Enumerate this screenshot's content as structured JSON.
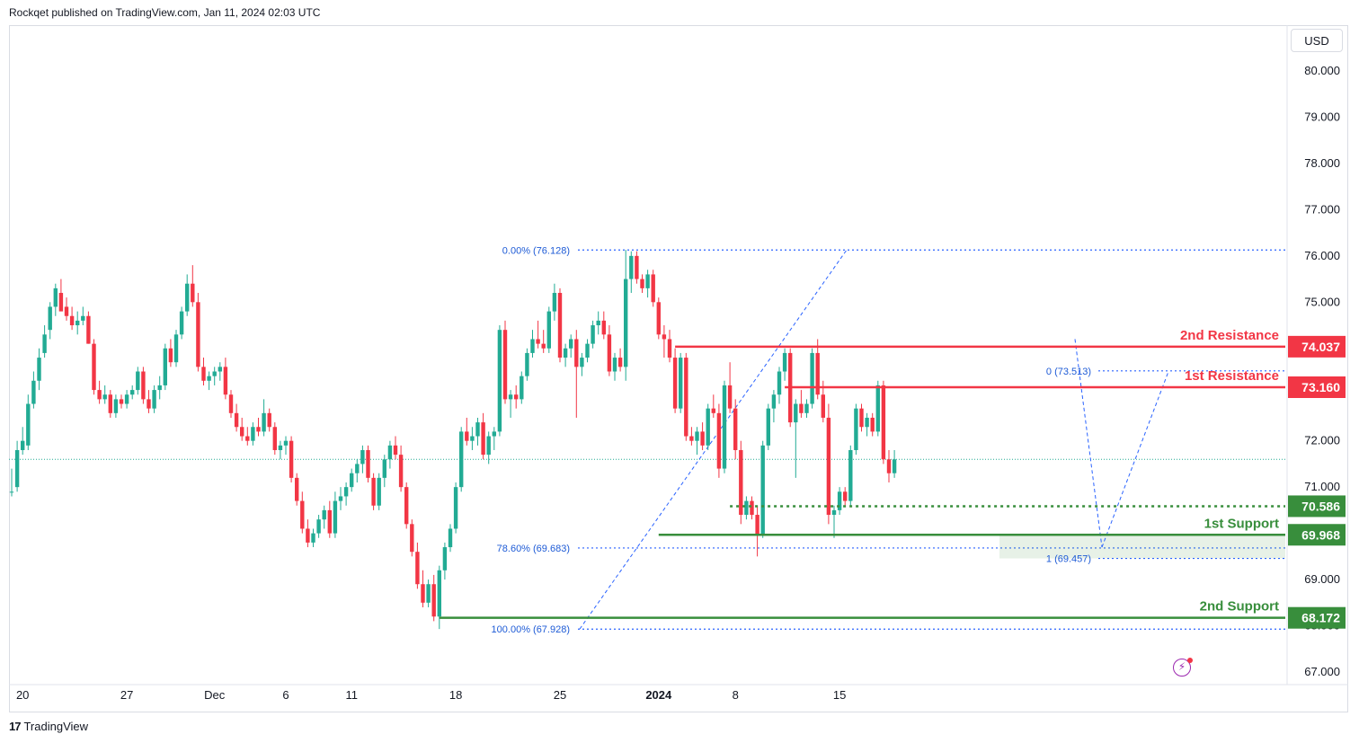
{
  "header": {
    "text": "Rockqet published on TradingView.com, Jan 11, 2024 02:03 UTC"
  },
  "currency": "USD",
  "footer": {
    "brand": "TradingView",
    "logo_glyph": "17"
  },
  "colors": {
    "up": "#22ab94",
    "down": "#f23645",
    "resistance": "#f23645",
    "support": "#388e3c",
    "fib": "#2962ff",
    "axis_text": "#131722"
  },
  "chart_data": {
    "type": "candlestick",
    "y_ticks": [
      "80.000",
      "79.000",
      "78.000",
      "77.000",
      "76.000",
      "75.000",
      "74.000",
      "73.000",
      "72.000",
      "71.000",
      "70.000",
      "69.000",
      "68.000",
      "67.000"
    ],
    "ylim": [
      66.6,
      80.4
    ],
    "x_ticks": [
      {
        "label": "20",
        "bar": 2,
        "bold": false
      },
      {
        "label": "27",
        "bar": 21,
        "bold": false
      },
      {
        "label": "Dec",
        "bar": 37,
        "bold": false
      },
      {
        "label": "6",
        "bar": 50,
        "bold": false
      },
      {
        "label": "11",
        "bar": 62,
        "bold": false
      },
      {
        "label": "18",
        "bar": 81,
        "bold": false
      },
      {
        "label": "25",
        "bar": 100,
        "bold": false
      },
      {
        "label": "2024",
        "bar": 118,
        "bold": true
      },
      {
        "label": "8",
        "bar": 132,
        "bold": false
      },
      {
        "label": "15",
        "bar": 151,
        "bold": false
      }
    ],
    "candles": [
      [
        70.9,
        71.4,
        70.8,
        70.9
      ],
      [
        71.0,
        72.0,
        70.9,
        71.8
      ],
      [
        71.8,
        72.3,
        71.7,
        72.0
      ],
      [
        71.9,
        73.0,
        71.8,
        72.8
      ],
      [
        72.8,
        73.5,
        72.7,
        73.3
      ],
      [
        73.3,
        74.0,
        73.1,
        73.8
      ],
      [
        73.9,
        74.5,
        73.8,
        74.3
      ],
      [
        74.4,
        75.0,
        74.2,
        74.9
      ],
      [
        74.9,
        75.4,
        74.7,
        75.3
      ],
      [
        75.2,
        75.5,
        74.9,
        74.8
      ],
      [
        74.9,
        75.1,
        74.6,
        74.7
      ],
      [
        74.7,
        74.9,
        74.4,
        74.5
      ],
      [
        74.5,
        74.8,
        74.3,
        74.6
      ],
      [
        74.6,
        74.9,
        74.5,
        74.7
      ],
      [
        74.7,
        74.8,
        74.1,
        74.1
      ],
      [
        74.1,
        74.2,
        73.0,
        73.1
      ],
      [
        73.1,
        73.3,
        72.8,
        72.9
      ],
      [
        72.9,
        73.2,
        72.8,
        73.0
      ],
      [
        73.0,
        73.1,
        72.5,
        72.6
      ],
      [
        72.6,
        73.0,
        72.5,
        72.9
      ],
      [
        72.9,
        73.0,
        72.7,
        72.8
      ],
      [
        72.8,
        73.1,
        72.7,
        73.0
      ],
      [
        73.0,
        73.2,
        72.9,
        73.1
      ],
      [
        73.1,
        73.6,
        73.0,
        73.5
      ],
      [
        73.5,
        73.6,
        72.8,
        72.9
      ],
      [
        72.9,
        73.1,
        72.6,
        72.7
      ],
      [
        72.7,
        73.2,
        72.6,
        73.1
      ],
      [
        73.1,
        73.4,
        72.9,
        73.2
      ],
      [
        73.2,
        74.1,
        73.1,
        74.0
      ],
      [
        74.0,
        74.2,
        73.6,
        73.7
      ],
      [
        73.7,
        74.4,
        73.6,
        74.3
      ],
      [
        74.3,
        74.9,
        74.2,
        74.8
      ],
      [
        74.8,
        75.6,
        74.7,
        75.4
      ],
      [
        75.4,
        75.8,
        74.9,
        75.0
      ],
      [
        75.0,
        75.2,
        73.5,
        73.6
      ],
      [
        73.6,
        73.8,
        73.2,
        73.3
      ],
      [
        73.3,
        73.5,
        73.1,
        73.4
      ],
      [
        73.4,
        73.6,
        73.2,
        73.5
      ],
      [
        73.5,
        73.7,
        73.3,
        73.6
      ],
      [
        73.6,
        73.8,
        72.9,
        73.0
      ],
      [
        73.0,
        73.1,
        72.5,
        72.6
      ],
      [
        72.6,
        72.8,
        72.2,
        72.3
      ],
      [
        72.3,
        72.5,
        72.0,
        72.1
      ],
      [
        72.1,
        72.3,
        71.9,
        72.0
      ],
      [
        72.0,
        72.4,
        71.9,
        72.3
      ],
      [
        72.3,
        72.5,
        72.1,
        72.2
      ],
      [
        72.2,
        72.9,
        72.1,
        72.6
      ],
      [
        72.6,
        72.7,
        72.2,
        72.3
      ],
      [
        72.3,
        72.4,
        71.7,
        71.8
      ],
      [
        71.8,
        72.0,
        71.6,
        71.9
      ],
      [
        71.9,
        72.1,
        71.7,
        72.0
      ],
      [
        72.0,
        72.1,
        71.1,
        71.2
      ],
      [
        71.2,
        71.3,
        70.6,
        70.7
      ],
      [
        70.7,
        70.9,
        70.0,
        70.1
      ],
      [
        70.1,
        70.3,
        69.7,
        69.8
      ],
      [
        69.8,
        70.1,
        69.7,
        70.0
      ],
      [
        70.0,
        70.4,
        69.9,
        70.3
      ],
      [
        70.3,
        70.6,
        70.1,
        70.5
      ],
      [
        70.5,
        70.7,
        69.9,
        70.0
      ],
      [
        70.0,
        70.9,
        69.9,
        70.7
      ],
      [
        70.7,
        71.0,
        70.5,
        70.8
      ],
      [
        70.8,
        71.1,
        70.6,
        71.0
      ],
      [
        71.0,
        71.4,
        70.9,
        71.3
      ],
      [
        71.3,
        71.6,
        71.1,
        71.5
      ],
      [
        71.5,
        71.9,
        71.3,
        71.8
      ],
      [
        71.8,
        71.9,
        71.1,
        71.2
      ],
      [
        71.2,
        71.3,
        70.5,
        70.6
      ],
      [
        70.6,
        71.3,
        70.5,
        71.2
      ],
      [
        71.2,
        71.7,
        71.0,
        71.6
      ],
      [
        71.6,
        72.0,
        71.4,
        71.9
      ],
      [
        71.9,
        72.1,
        71.6,
        71.7
      ],
      [
        71.7,
        71.9,
        70.9,
        71.0
      ],
      [
        71.0,
        71.1,
        70.1,
        70.2
      ],
      [
        70.2,
        70.3,
        69.5,
        69.6
      ],
      [
        69.6,
        69.8,
        68.8,
        68.9
      ],
      [
        68.9,
        69.2,
        68.4,
        68.5
      ],
      [
        68.5,
        69.0,
        68.4,
        68.9
      ],
      [
        68.9,
        69.1,
        68.1,
        68.2
      ],
      [
        68.2,
        69.3,
        67.93,
        69.2
      ],
      [
        69.2,
        69.8,
        69.0,
        69.7
      ],
      [
        69.7,
        70.2,
        69.6,
        70.1
      ],
      [
        70.1,
        71.1,
        70.0,
        71.0
      ],
      [
        71.0,
        72.3,
        70.9,
        72.2
      ],
      [
        72.2,
        72.5,
        71.9,
        72.0
      ],
      [
        72.0,
        72.3,
        71.8,
        72.1
      ],
      [
        72.1,
        72.5,
        71.9,
        72.4
      ],
      [
        72.4,
        72.6,
        71.6,
        71.7
      ],
      [
        71.7,
        72.2,
        71.5,
        72.1
      ],
      [
        72.1,
        72.3,
        71.8,
        72.2
      ],
      [
        72.2,
        74.5,
        72.1,
        74.4
      ],
      [
        74.4,
        74.6,
        72.8,
        72.9
      ],
      [
        72.9,
        73.1,
        72.5,
        73.0
      ],
      [
        73.0,
        73.2,
        72.7,
        72.9
      ],
      [
        72.9,
        73.5,
        72.8,
        73.4
      ],
      [
        73.4,
        74.0,
        73.3,
        73.9
      ],
      [
        73.9,
        74.4,
        73.8,
        74.2
      ],
      [
        74.2,
        74.6,
        74.0,
        74.1
      ],
      [
        74.1,
        74.4,
        73.9,
        74.0
      ],
      [
        74.0,
        74.9,
        73.9,
        74.8
      ],
      [
        74.8,
        75.4,
        74.6,
        75.2
      ],
      [
        75.2,
        75.3,
        73.7,
        73.8
      ],
      [
        73.8,
        74.1,
        73.6,
        74.0
      ],
      [
        74.0,
        74.3,
        73.8,
        74.2
      ],
      [
        74.2,
        74.4,
        72.5,
        73.6
      ],
      [
        73.6,
        73.9,
        73.4,
        73.8
      ],
      [
        73.8,
        74.2,
        73.7,
        74.1
      ],
      [
        74.1,
        74.6,
        74.0,
        74.5
      ],
      [
        74.5,
        74.8,
        74.3,
        74.6
      ],
      [
        74.6,
        74.8,
        74.2,
        74.3
      ],
      [
        74.3,
        74.5,
        73.4,
        73.5
      ],
      [
        73.5,
        73.9,
        73.3,
        73.8
      ],
      [
        73.8,
        74.0,
        73.5,
        73.6
      ],
      [
        73.6,
        76.13,
        73.3,
        75.5
      ],
      [
        75.5,
        76.1,
        75.2,
        76.0
      ],
      [
        76.0,
        76.1,
        75.4,
        75.5
      ],
      [
        75.5,
        75.6,
        75.2,
        75.3
      ],
      [
        75.3,
        75.7,
        75.1,
        75.6
      ],
      [
        75.6,
        75.7,
        74.9,
        75.0
      ],
      [
        75.0,
        75.1,
        74.2,
        74.3
      ],
      [
        74.3,
        74.5,
        73.8,
        74.2
      ],
      [
        74.2,
        74.4,
        73.7,
        73.8
      ],
      [
        73.8,
        74.0,
        72.6,
        72.7
      ],
      [
        72.7,
        73.9,
        72.6,
        73.8
      ],
      [
        73.8,
        73.9,
        72.0,
        72.1
      ],
      [
        72.1,
        72.3,
        71.9,
        72.0
      ],
      [
        72.0,
        72.3,
        71.7,
        72.2
      ],
      [
        72.2,
        72.4,
        71.8,
        71.9
      ],
      [
        71.9,
        72.8,
        71.8,
        72.7
      ],
      [
        72.7,
        73.0,
        72.5,
        72.6
      ],
      [
        72.6,
        72.8,
        71.2,
        71.4
      ],
      [
        71.4,
        73.3,
        71.3,
        73.2
      ],
      [
        73.2,
        73.7,
        72.6,
        72.7
      ],
      [
        72.7,
        72.9,
        71.6,
        71.8
      ],
      [
        71.8,
        72.0,
        70.2,
        70.4
      ],
      [
        70.4,
        70.8,
        70.3,
        70.7
      ],
      [
        70.7,
        70.8,
        70.3,
        70.4
      ],
      [
        70.4,
        70.6,
        69.5,
        69.97
      ],
      [
        69.97,
        72.0,
        69.9,
        71.9
      ],
      [
        71.9,
        72.8,
        71.8,
        72.7
      ],
      [
        72.7,
        73.1,
        72.4,
        73.0
      ],
      [
        73.0,
        73.6,
        72.8,
        73.5
      ],
      [
        73.5,
        74.0,
        73.3,
        73.9
      ],
      [
        73.9,
        74.0,
        72.3,
        72.4
      ],
      [
        72.4,
        72.9,
        71.2,
        72.8
      ],
      [
        72.8,
        73.1,
        72.5,
        72.6
      ],
      [
        72.6,
        72.9,
        72.5,
        72.8
      ],
      [
        72.8,
        74.0,
        72.7,
        73.9
      ],
      [
        73.9,
        74.2,
        72.9,
        73.0
      ],
      [
        73.0,
        73.3,
        72.4,
        72.5
      ],
      [
        72.5,
        72.8,
        70.2,
        70.4
      ],
      [
        70.4,
        70.6,
        69.9,
        70.5
      ],
      [
        70.5,
        71.0,
        70.4,
        70.9
      ],
      [
        70.9,
        71.0,
        70.6,
        70.7
      ],
      [
        70.7,
        71.9,
        70.6,
        71.8
      ],
      [
        71.8,
        72.8,
        71.7,
        72.7
      ],
      [
        72.7,
        72.8,
        72.2,
        72.3
      ],
      [
        72.3,
        72.6,
        72.1,
        72.5
      ],
      [
        72.5,
        72.6,
        72.1,
        72.2
      ],
      [
        72.2,
        73.3,
        72.1,
        73.2
      ],
      [
        73.2,
        73.3,
        71.5,
        71.6
      ],
      [
        71.6,
        71.8,
        71.1,
        71.3
      ],
      [
        71.3,
        71.8,
        71.2,
        71.6
      ]
    ],
    "levels": [
      {
        "kind": "resistance",
        "label": "2nd Resistance",
        "value": 74.037,
        "price_tag": "74.037",
        "from_bar": 121,
        "style": "solid"
      },
      {
        "kind": "resistance",
        "label": "1st Resistance",
        "value": 73.16,
        "price_tag": "73.160",
        "from_bar": 141,
        "style": "solid"
      },
      {
        "kind": "support",
        "label": "",
        "value": 70.586,
        "price_tag": "70.586",
        "from_bar": 131,
        "style": "dotted"
      },
      {
        "kind": "support",
        "label": "1st Support",
        "value": 69.968,
        "price_tag": "69.968",
        "from_bar": 118,
        "style": "solid"
      },
      {
        "kind": "support",
        "label": "2nd Support",
        "value": 68.172,
        "price_tag": "68.172",
        "from_bar": 78,
        "style": "solid"
      }
    ],
    "fib_left": {
      "levels": [
        {
          "text": "0.00% (76.128)",
          "value": 76.128
        },
        {
          "text": "78.60% (69.683)",
          "value": 69.683
        },
        {
          "text": "100.00% (67.928)",
          "value": 67.928
        }
      ]
    },
    "fib_right": {
      "levels": [
        {
          "text": "0 (73.513)",
          "value": 73.513
        },
        {
          "text": "1 (69.457)",
          "value": 69.457
        }
      ]
    },
    "last_price": 71.6
  }
}
